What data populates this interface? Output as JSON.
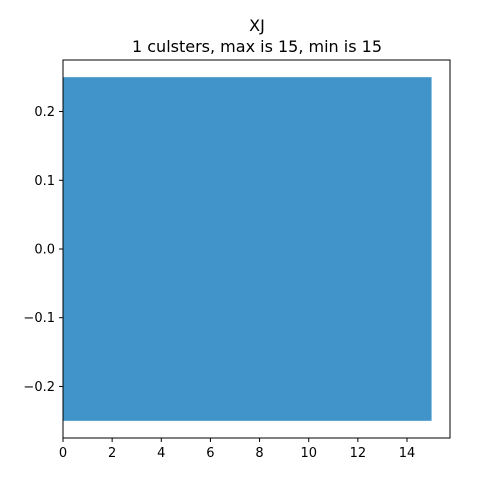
{
  "chart_data": {
    "type": "bar",
    "orientation": "horizontal",
    "title": "XJ",
    "subtitle": "1 culsters, max is 15, min is 15",
    "xlabel": "",
    "ylabel": "",
    "categories": [
      "0"
    ],
    "values": [
      15
    ],
    "bar_color": "#4094c9",
    "xlim": [
      0,
      15.75
    ],
    "ylim": [
      -0.275,
      0.275
    ],
    "xticks": [
      0,
      2,
      4,
      6,
      8,
      10,
      12,
      14
    ],
    "xtick_labels": [
      "0",
      "2",
      "4",
      "6",
      "8",
      "10",
      "12",
      "14"
    ],
    "yticks": [
      0.2,
      0.1,
      0.0,
      -0.1,
      -0.2
    ],
    "ytick_labels": [
      "0.2",
      "0.1",
      "0.0",
      "−0.1",
      "−0.2"
    ],
    "grid": false,
    "legend": "none"
  }
}
